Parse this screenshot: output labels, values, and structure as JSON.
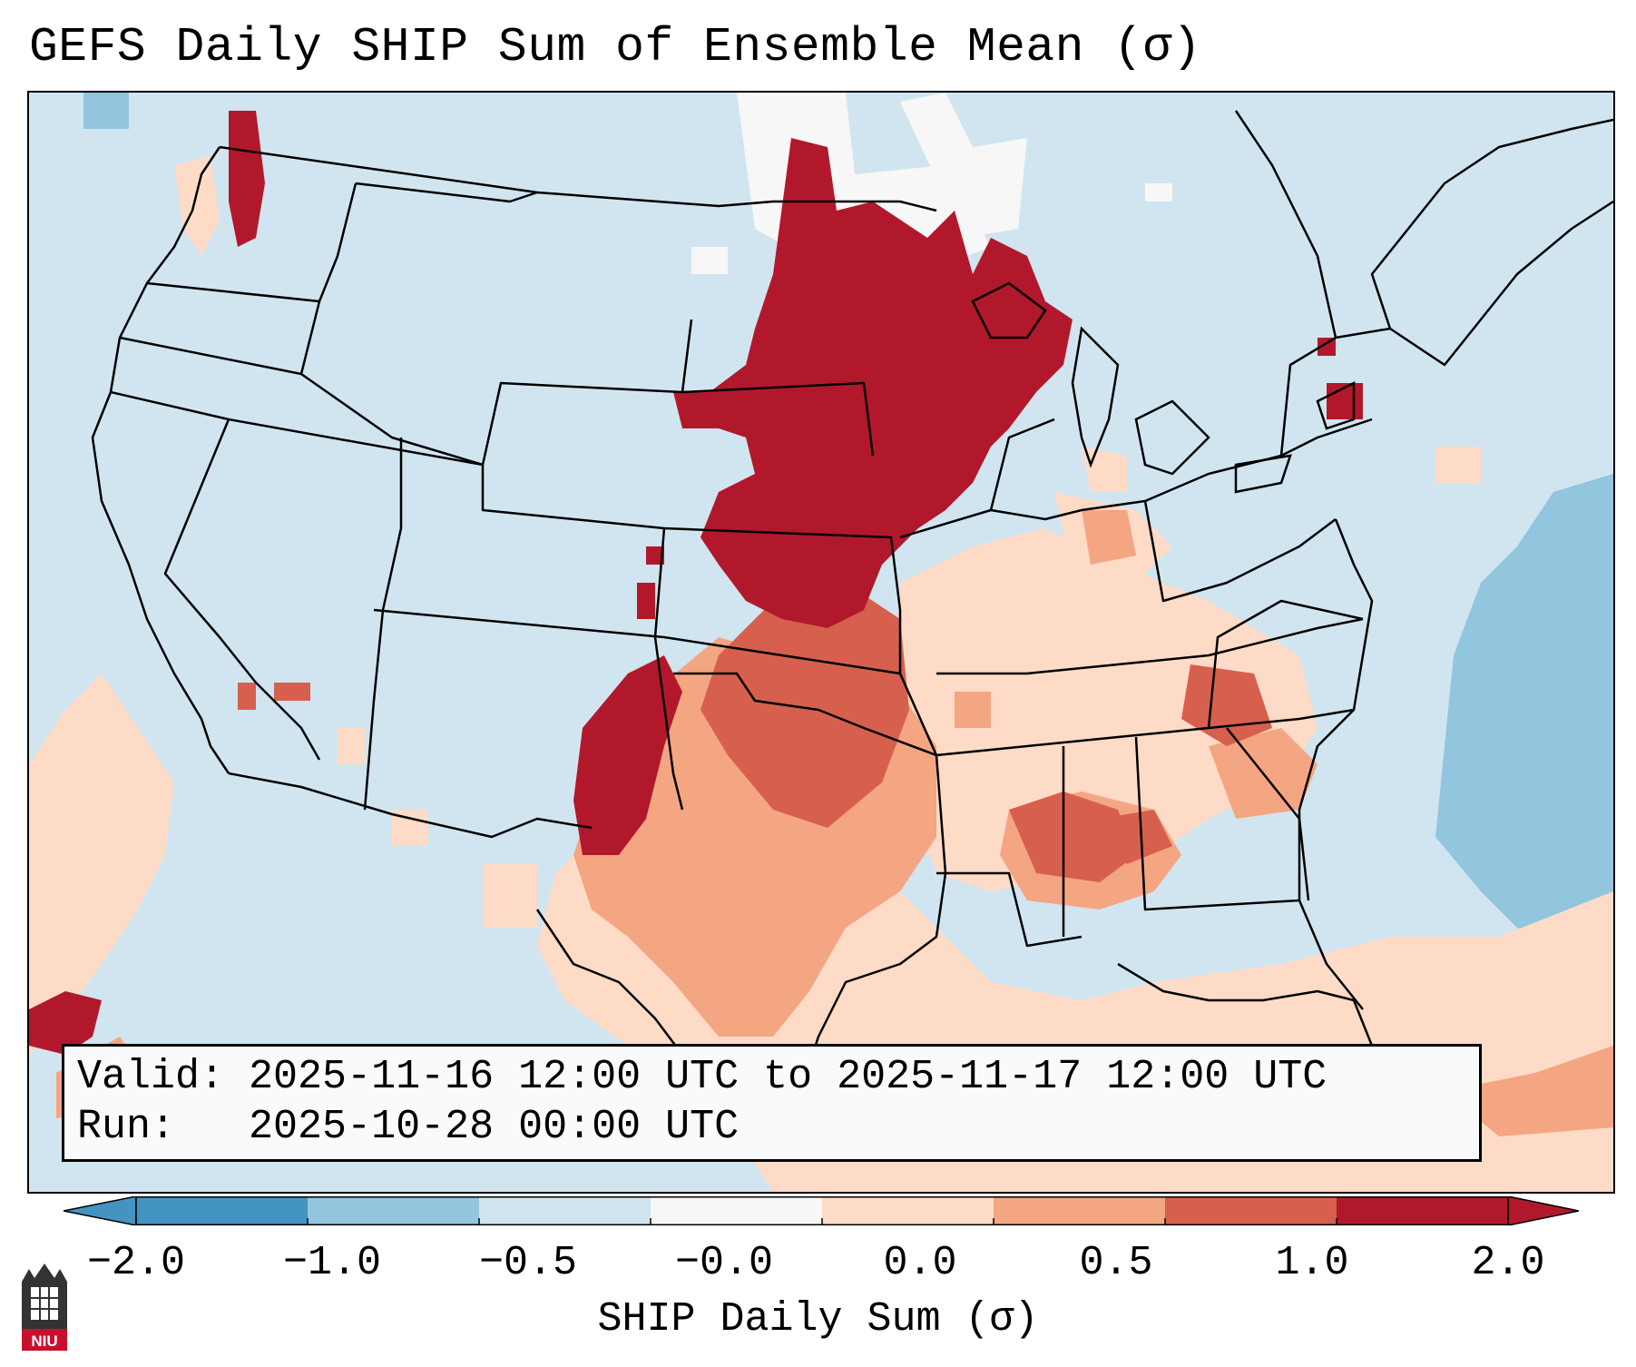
{
  "title": "GEFS Daily SHIP Sum of Ensemble Mean (σ)",
  "info": {
    "valid_label": "Valid:",
    "valid_value": "2025-11-16 12:00 UTC to 2025-11-17 12:00 UTC",
    "run_label": "Run:",
    "run_value": "2025-10-28 00:00 UTC"
  },
  "colorbar": {
    "label": "SHIP Daily Sum (σ)",
    "ticks": [
      "−2.0",
      "−1.0",
      "−0.5",
      "−0.0",
      "0.0",
      "0.5",
      "1.0",
      "2.0"
    ],
    "colors": [
      "#4393c3",
      "#92c5de",
      "#d1e5f0",
      "#f7f7f7",
      "#fddbc7",
      "#f4a582",
      "#d6604d",
      "#b2182b"
    ],
    "extend": "both"
  },
  "logo": {
    "text": "NIU"
  }
}
